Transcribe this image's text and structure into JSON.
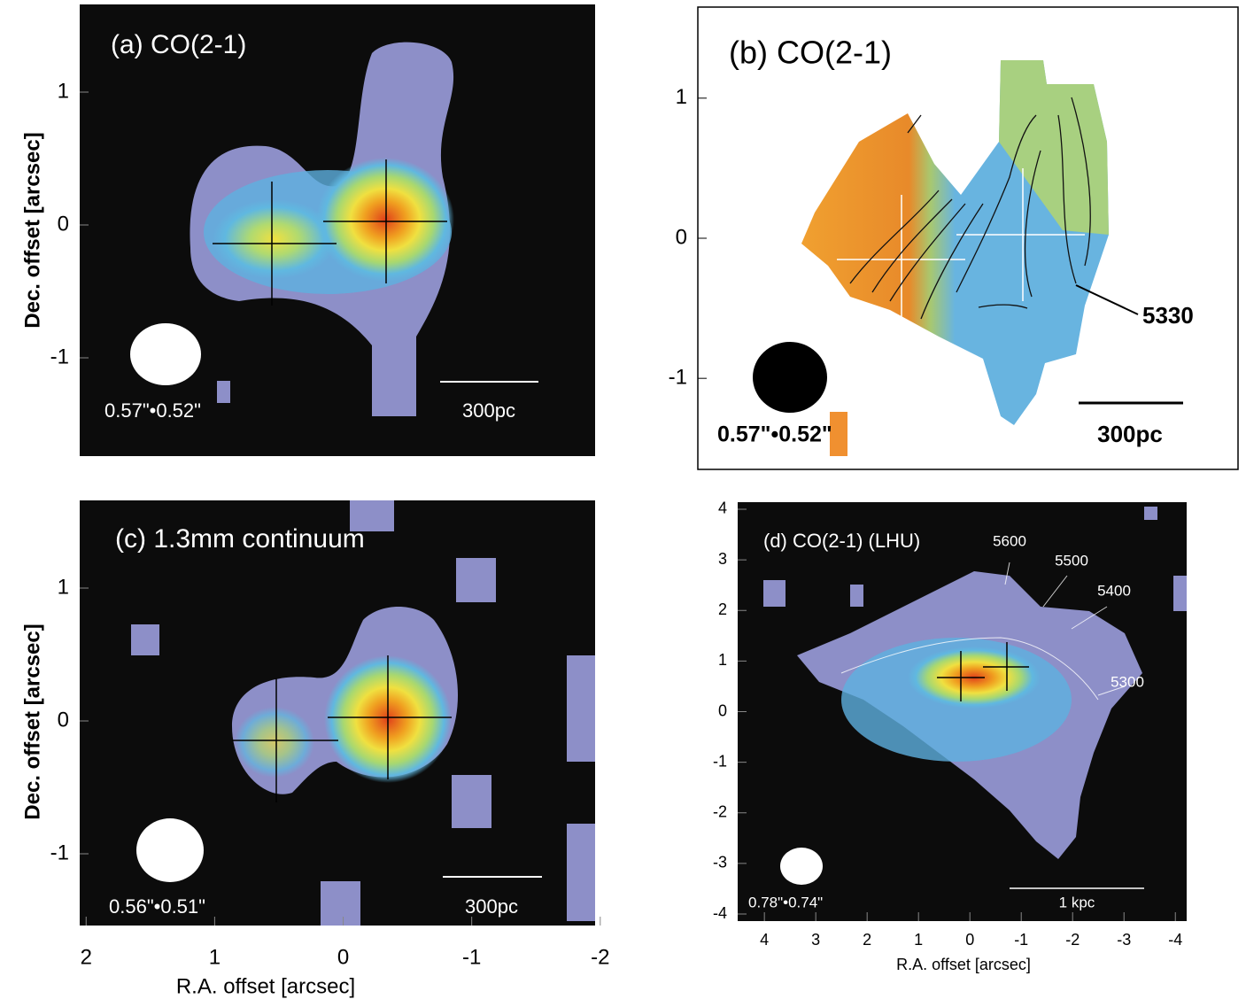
{
  "panels": [
    {
      "title": "(a) CO(2-1)",
      "beam": "0.57\"•0.52\"",
      "scale_bar": "300pc",
      "ylabel": "Dec. offset [arcsec]",
      "ylim": [
        -1.74,
        1.66
      ],
      "yticks": [
        1,
        0,
        -1
      ]
    },
    {
      "title": "(b) CO(2-1)",
      "beam": "0.57\"•0.52\"",
      "scale_bar": "300pc",
      "annotation": "5330",
      "ylim": [
        -1.65,
        1.65
      ],
      "yticks": [
        1,
        0,
        -1
      ]
    },
    {
      "title": "(c) 1.3mm continuum",
      "beam": "0.56\"•0.51\"",
      "scale_bar": "300pc",
      "ylabel": "Dec. offset [arcsec]",
      "xlabel": "R.A. offset [arcsec]",
      "xlim": [
        2.05,
        -1.96
      ],
      "xticks": [
        2,
        1,
        0,
        -1,
        -2
      ],
      "ylim": [
        -1.54,
        1.66
      ],
      "yticks": [
        1,
        0,
        -1
      ]
    },
    {
      "title": "(d) CO(2-1) (LHU)",
      "beam": "0.78\"•0.74\"",
      "scale_bar": "1 kpc",
      "xlabel": "R.A. offset [arcsec]",
      "contour_labels": [
        "5600",
        "5500",
        "5400",
        "5300"
      ],
      "xlim": [
        4.52,
        -4.22
      ],
      "xticks": [
        4,
        3,
        2,
        1,
        0,
        -1,
        -2,
        -3,
        -4
      ],
      "ylim": [
        -4.14,
        4.14
      ],
      "yticks": [
        4,
        3,
        2,
        1,
        0,
        -1,
        -2,
        -3,
        -4
      ]
    }
  ]
}
